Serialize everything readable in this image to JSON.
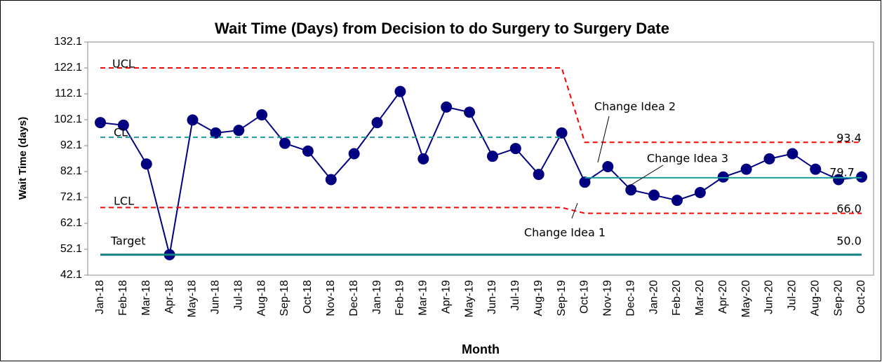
{
  "chart_data": {
    "type": "line",
    "title": "Wait Time (Days) from Decision to do Surgery to Surgery Date",
    "x_label": "Month",
    "y_label": "Wait Time (days)",
    "categories": [
      "Jan-18",
      "Feb-18",
      "Mar-18",
      "Apr-18",
      "May-18",
      "Jun-18",
      "Jul-18",
      "Aug-18",
      "Sep-18",
      "Oct-18",
      "Nov-18",
      "Dec-18",
      "Jan-19",
      "Feb-19",
      "Mar-19",
      "Apr-19",
      "May-19",
      "Jun-19",
      "Jul-19",
      "Aug-19",
      "Sep-19",
      "Oct-19",
      "Nov-19",
      "Dec-19",
      "Jan-20",
      "Feb-20",
      "Mar-20",
      "Apr-20",
      "May-20",
      "Jun-20",
      "Jul-20",
      "Aug-20",
      "Sep-20",
      "Oct-20"
    ],
    "ylim": [
      42.1,
      132.1
    ],
    "yticks": [
      42.1,
      52.1,
      62.1,
      72.1,
      82.1,
      92.1,
      102.1,
      112.1,
      122.1,
      132.1
    ],
    "series": [
      {
        "color": "#000080",
        "markers": true,
        "dashed": false,
        "values": [
          101,
          100,
          85,
          50,
          102,
          97,
          98,
          104,
          93,
          90,
          79,
          89,
          101,
          113,
          87,
          107,
          105,
          88,
          91,
          81,
          97,
          78,
          84,
          75,
          73,
          71,
          74,
          80,
          83,
          87,
          89,
          83,
          79,
          80
        ]
      },
      {
        "name": "UCL",
        "color": "#ff0000",
        "dashed": true,
        "values": [
          122.1,
          122.1,
          122.1,
          122.1,
          122.1,
          122.1,
          122.1,
          122.1,
          122.1,
          122.1,
          122.1,
          122.1,
          122.1,
          122.1,
          122.1,
          122.1,
          122.1,
          122.1,
          122.1,
          122.1,
          122.1,
          93.4,
          93.4,
          93.4,
          93.4,
          93.4,
          93.4,
          93.4,
          93.4,
          93.4,
          93.4,
          93.4,
          93.4,
          93.4
        ]
      },
      {
        "name": "CL",
        "color": "#1a9e9e",
        "dashed": true,
        "values": [
          95.3,
          95.3,
          95.3,
          95.3,
          95.3,
          95.3,
          95.3,
          95.3,
          95.3,
          95.3,
          95.3,
          95.3,
          95.3,
          95.3,
          95.3,
          95.3,
          95.3,
          95.3,
          95.3,
          95.3,
          95.3,
          null,
          null,
          null,
          null,
          null,
          null,
          null,
          null,
          null,
          null,
          null,
          null,
          null
        ]
      },
      {
        "color": "#1a9e9e",
        "dashed": false,
        "values": [
          null,
          null,
          null,
          null,
          null,
          null,
          null,
          null,
          null,
          null,
          null,
          null,
          null,
          null,
          null,
          null,
          null,
          null,
          null,
          null,
          null,
          79.7,
          79.7,
          79.7,
          79.7,
          79.7,
          79.7,
          79.7,
          79.7,
          79.7,
          79.7,
          79.7,
          79.7,
          79.7
        ]
      },
      {
        "name": "LCL",
        "color": "#ff0000",
        "dashed": true,
        "values": [
          68.2,
          68.2,
          68.2,
          68.2,
          68.2,
          68.2,
          68.2,
          68.2,
          68.2,
          68.2,
          68.2,
          68.2,
          68.2,
          68.2,
          68.2,
          68.2,
          68.2,
          68.2,
          68.2,
          68.2,
          68.2,
          66.0,
          66.0,
          66.0,
          66.0,
          66.0,
          66.0,
          66.0,
          66.0,
          66.0,
          66.0,
          66.0,
          66.0,
          66.0
        ]
      },
      {
        "name": "Target",
        "color": "#138080",
        "dashed": false,
        "width": 3,
        "values": [
          50,
          50,
          50,
          50,
          50,
          50,
          50,
          50,
          50,
          50,
          50,
          50,
          50,
          50,
          50,
          50,
          50,
          50,
          50,
          50,
          50,
          50,
          50,
          50,
          50,
          50,
          50,
          50,
          50,
          50,
          50,
          50,
          50,
          50
        ]
      }
    ],
    "annotations": [
      "Change Idea 1",
      "Change Idea 2",
      "Change Idea 3",
      "93.4",
      "79.7",
      "66.0",
      "50.0"
    ]
  }
}
